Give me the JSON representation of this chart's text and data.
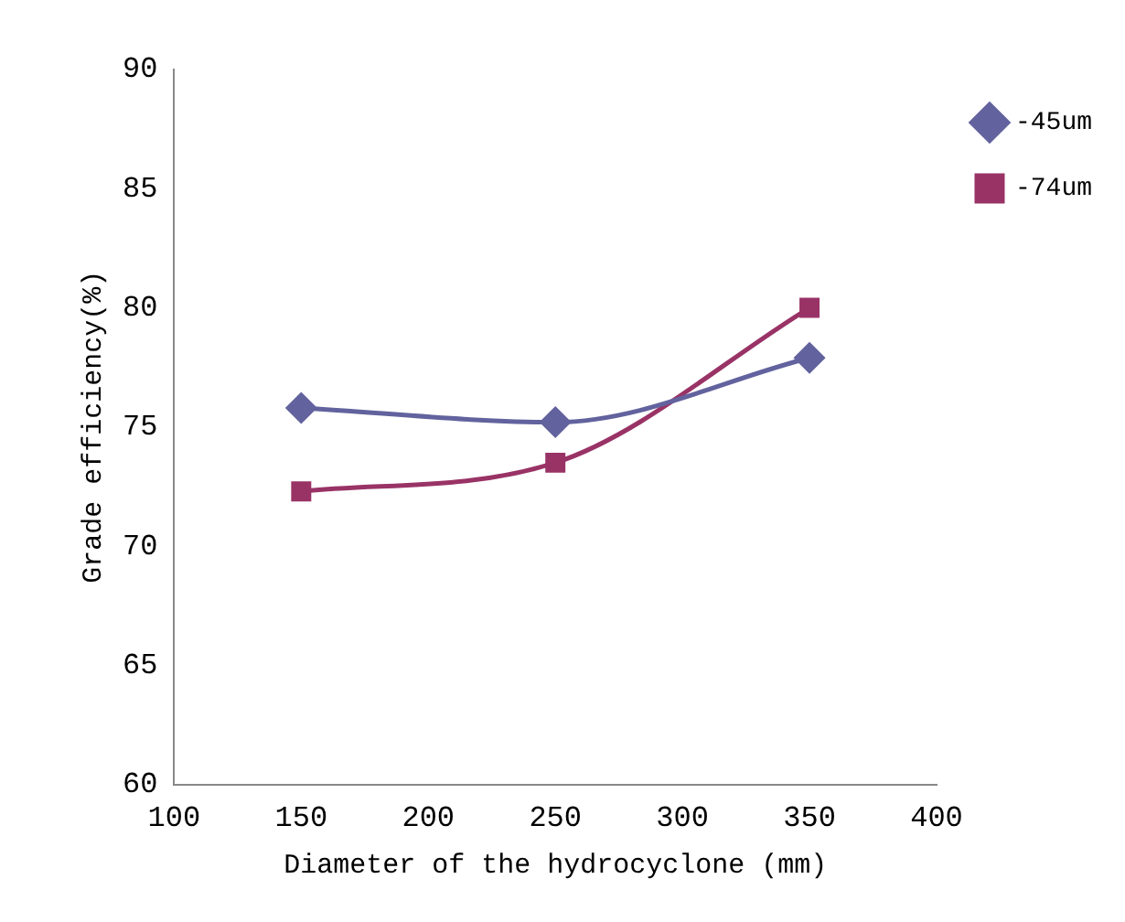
{
  "chart_data": {
    "type": "line",
    "xlabel": "Diameter of the hydrocyclone (mm)",
    "ylabel": "Grade efficiency(%)",
    "x": [
      150,
      250,
      350
    ],
    "series": [
      {
        "name": "-45um",
        "color": "#62629e",
        "marker": "diamond",
        "values": [
          75.8,
          75.2,
          77.9
        ]
      },
      {
        "name": "-74um",
        "color": "#993366",
        "marker": "square",
        "values": [
          72.3,
          73.5,
          80.0
        ]
      }
    ],
    "xlim": [
      100,
      400
    ],
    "xticks": [
      100,
      150,
      200,
      250,
      300,
      350,
      400
    ],
    "ylim": [
      60,
      90
    ],
    "yticks": [
      60,
      65,
      70,
      75,
      80,
      85,
      90
    ],
    "grid": false,
    "legend": "right"
  }
}
